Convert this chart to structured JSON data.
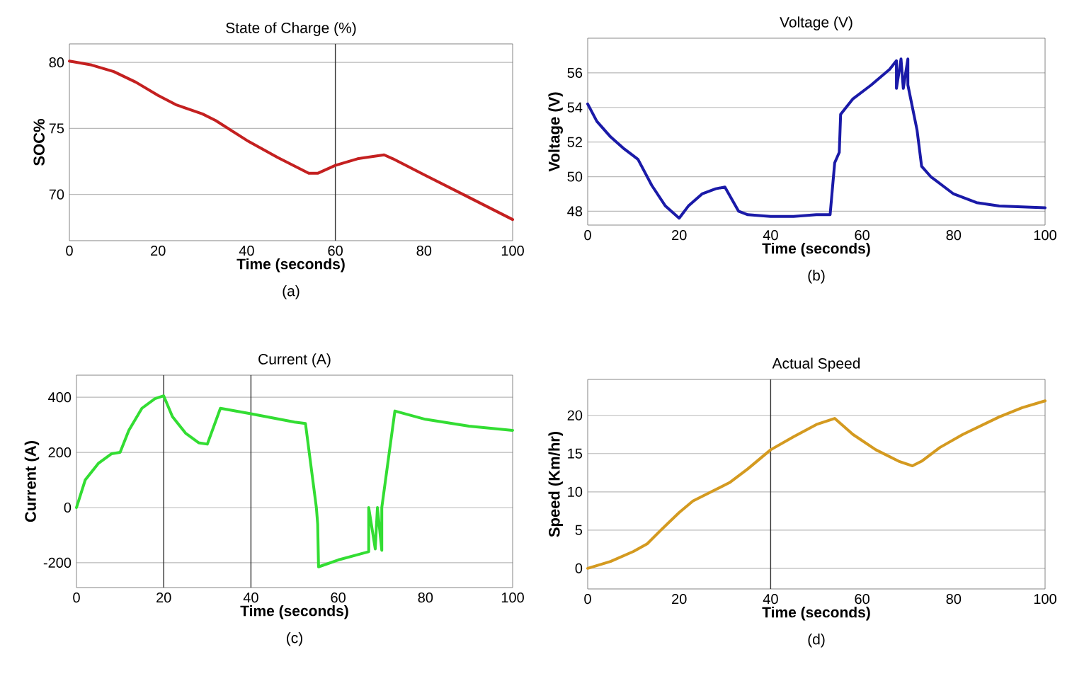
{
  "chart_data": [
    {
      "type": "line",
      "title": "State of Charge (%)",
      "xlabel": "Time (seconds)",
      "ylabel": "SOC%",
      "annotations": [
        "(a)"
      ],
      "grid": "y",
      "xlim": [
        0,
        100
      ],
      "ylim": [
        66.5,
        81.4
      ],
      "xticks": [
        0,
        20,
        40,
        60,
        80,
        100
      ],
      "yticks": [
        70,
        75,
        80
      ],
      "ref_lines": [
        {
          "axis": "x",
          "value": 60,
          "color": "#333333"
        }
      ],
      "series": [
        {
          "color": "#c42020",
          "x": [
            0,
            5,
            10,
            15,
            20,
            24,
            30,
            33,
            40,
            47,
            54,
            56,
            60,
            65,
            71,
            73,
            80,
            90,
            100
          ],
          "values": [
            80.1,
            79.8,
            79.3,
            78.5,
            77.5,
            76.8,
            76.1,
            75.6,
            74.1,
            72.8,
            71.6,
            71.6,
            72.2,
            72.7,
            73.0,
            72.7,
            71.5,
            69.8,
            68.1
          ]
        }
      ]
    },
    {
      "type": "line",
      "title": "Voltage (V)",
      "xlabel": "Time (seconds)",
      "ylabel": "Voltage (V)",
      "annotations": [
        "(b)"
      ],
      "grid": "y",
      "xlim": [
        0,
        100
      ],
      "ylim": [
        47.2,
        58
      ],
      "xticks": [
        0,
        20,
        40,
        60,
        80,
        100
      ],
      "yticks": [
        48,
        50,
        52,
        54,
        56
      ],
      "series": [
        {
          "color": "#1a1aa8",
          "x": [
            0,
            2,
            5,
            8,
            10,
            11,
            14,
            17,
            20,
            22,
            25,
            28,
            30,
            33,
            35,
            40,
            45,
            50,
            53,
            54,
            55,
            55.3,
            58,
            62,
            66,
            67.5,
            67.5,
            68.5,
            69,
            70,
            70,
            72,
            73,
            75,
            80,
            85,
            90,
            100
          ],
          "values": [
            54.2,
            53.2,
            52.3,
            51.6,
            51.2,
            51.0,
            49.5,
            48.3,
            47.6,
            48.3,
            49.0,
            49.3,
            49.4,
            48.0,
            47.8,
            47.7,
            47.7,
            47.8,
            47.8,
            50.8,
            51.4,
            53.6,
            54.5,
            55.3,
            56.2,
            56.7,
            55.1,
            56.8,
            55.1,
            56.8,
            55.3,
            52.7,
            50.6,
            50.0,
            49.0,
            48.5,
            48.3,
            48.2
          ]
        }
      ]
    },
    {
      "type": "line",
      "title": "Current (A)",
      "xlabel": "Time (seconds)",
      "ylabel": "Current (A)",
      "annotations": [
        "(c)"
      ],
      "grid": "y",
      "xlim": [
        0,
        100
      ],
      "ylim": [
        -290,
        480
      ],
      "xticks": [
        0,
        20,
        40,
        60,
        80,
        100
      ],
      "yticks": [
        -200,
        0,
        200,
        400
      ],
      "ref_lines": [
        {
          "axis": "x",
          "value": 20,
          "color": "#333333"
        },
        {
          "axis": "x",
          "value": 40,
          "color": "#333333"
        }
      ],
      "series": [
        {
          "color": "#33dd33",
          "x": [
            0,
            2,
            5,
            8,
            10,
            12,
            15,
            18,
            20,
            22,
            25,
            28,
            30,
            33,
            40,
            50,
            52.5,
            55,
            55.3,
            55.5,
            60,
            67,
            67,
            68.5,
            69,
            70,
            70,
            73,
            80,
            90,
            100
          ],
          "values": [
            0,
            100,
            160,
            195,
            200,
            280,
            360,
            395,
            405,
            330,
            270,
            235,
            230,
            360,
            340,
            310,
            305,
            0,
            -60,
            -215,
            -190,
            -160,
            0,
            -150,
            0,
            -155,
            0,
            350,
            320,
            295,
            280
          ]
        }
      ]
    },
    {
      "type": "line",
      "title": "Actual Speed",
      "xlabel": "Time (seconds)",
      "ylabel": "Speed (Km/hr)",
      "annotations": [
        "(d)"
      ],
      "grid": "y",
      "xlim": [
        0,
        100
      ],
      "ylim": [
        -2.7,
        24.7
      ],
      "xticks": [
        0,
        20,
        40,
        60,
        80,
        100
      ],
      "yticks": [
        0,
        5,
        10,
        15,
        20
      ],
      "ref_lines": [
        {
          "axis": "x",
          "value": 40,
          "color": "#333333"
        }
      ],
      "series": [
        {
          "color": "#d49a20",
          "x": [
            0,
            5,
            10,
            13,
            16,
            20,
            23,
            27,
            31,
            35,
            40,
            45,
            50,
            54,
            58,
            63,
            68,
            71,
            73,
            77,
            82,
            90,
            95,
            100
          ],
          "values": [
            0,
            0.9,
            2.2,
            3.2,
            5,
            7.3,
            8.8,
            10,
            11.2,
            13,
            15.5,
            17.2,
            18.8,
            19.6,
            17.5,
            15.5,
            14,
            13.4,
            14,
            15.8,
            17.5,
            19.8,
            21,
            21.9
          ]
        }
      ]
    }
  ]
}
